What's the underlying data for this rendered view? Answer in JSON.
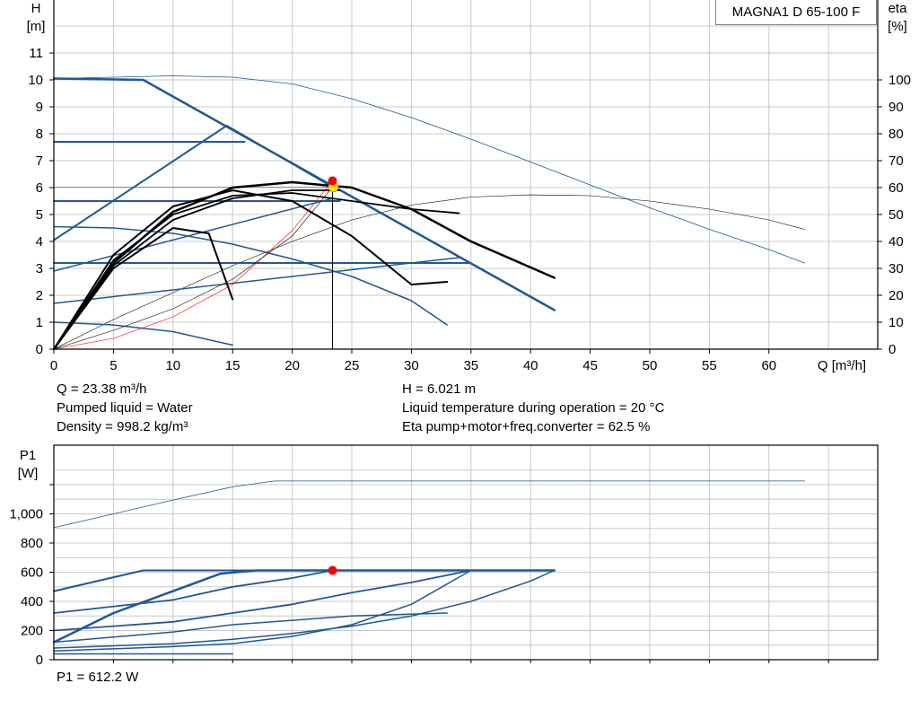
{
  "model": "MAGNA1 D 65-100 F",
  "operating_point": {
    "q_text": "Q = 23.38 m³/h",
    "h_text": "H = 6.021 m",
    "liquid_text": "Pumped liquid = Water",
    "temp_text": "Liquid temperature during operation = 20 °C",
    "density_text": "Density = 998.2 kg/m³",
    "eta_text": "Eta pump+motor+freq.converter = 62.5 %",
    "p1_text": "P1 = 612.2 W"
  },
  "colors": {
    "curve_blue": "#1f5896",
    "black": "#000000",
    "duty_red": "#ff0000",
    "duty_yellow": "#ffe000",
    "grid": "#c8c8c8"
  },
  "chart_data": [
    {
      "type": "line",
      "title": "",
      "xlabel": "Q [m³/h]",
      "ylabel_left": "H\n[m]",
      "ylabel_right": "eta\n[%]",
      "xlim": [
        0,
        69
      ],
      "ylim_left": [
        0,
        13
      ],
      "ylim_right": [
        0,
        130
      ],
      "x_ticks": [
        0,
        5,
        10,
        15,
        20,
        25,
        30,
        35,
        40,
        45,
        50,
        55,
        60
      ],
      "y_ticks_left": [
        0,
        1,
        2,
        3,
        4,
        5,
        6,
        7,
        8,
        9,
        10,
        11
      ],
      "y_ticks_right": [
        0,
        10,
        20,
        30,
        40,
        50,
        60,
        70,
        80,
        90,
        100
      ],
      "grid": true,
      "series": [
        {
          "role": "max_curve",
          "color": "#1f5896",
          "width": 0.8,
          "points": [
            [
              0,
              10.05
            ],
            [
              5,
              10.1
            ],
            [
              10,
              10.15
            ],
            [
              15,
              10.1
            ],
            [
              20,
              9.85
            ],
            [
              25,
              9.3
            ],
            [
              30,
              8.6
            ],
            [
              35,
              7.8
            ],
            [
              40,
              6.95
            ],
            [
              45,
              6.1
            ],
            [
              50,
              5.25
            ],
            [
              55,
              4.45
            ],
            [
              60,
              3.7
            ],
            [
              63,
              3.2
            ]
          ]
        },
        {
          "role": "eta_max",
          "color": "#000000",
          "width": 0.6,
          "axis": "right",
          "points": [
            [
              0,
              0
            ],
            [
              5,
              11
            ],
            [
              10,
              21
            ],
            [
              15,
              31
            ],
            [
              20,
              40
            ],
            [
              25,
              48
            ],
            [
              30,
              53.5
            ],
            [
              35,
              56.5
            ],
            [
              40,
              57.3
            ],
            [
              45,
              57
            ],
            [
              50,
              55
            ],
            [
              55,
              52
            ],
            [
              60,
              48
            ],
            [
              63,
              44.5
            ]
          ]
        },
        {
          "role": "prop_pressure",
          "color": "#1f5896",
          "width": 2.5,
          "points": [
            [
              0,
              10.05
            ],
            [
              7.5,
              10
            ],
            [
              42,
              1.45
            ]
          ]
        },
        {
          "role": "const_pressure",
          "color": "#1f5896",
          "width": 2,
          "points": [
            [
              0,
              7.7
            ],
            [
              16,
              7.7
            ]
          ]
        },
        {
          "role": "const_pressure",
          "color": "#1f5896",
          "width": 2,
          "points": [
            [
              0,
              5.5
            ],
            [
              24,
              5.5
            ]
          ]
        },
        {
          "role": "const_pressure",
          "color": "#1f5896",
          "width": 2,
          "points": [
            [
              0,
              3.2
            ],
            [
              35,
              3.2
            ]
          ]
        },
        {
          "role": "prop_line",
          "color": "#1f5896",
          "width": 2,
          "points": [
            [
              0,
              4.05
            ],
            [
              14.5,
              8.3
            ],
            [
              23.38,
              6.021
            ]
          ]
        },
        {
          "role": "prop_line",
          "color": "#1f5896",
          "width": 1.5,
          "points": [
            [
              0,
              2.9
            ],
            [
              23.38,
              5.6
            ]
          ]
        },
        {
          "role": "prop_line",
          "color": "#1f5896",
          "width": 1.5,
          "points": [
            [
              0,
              1.7
            ],
            [
              34,
              3.4
            ]
          ]
        },
        {
          "role": "const_curve",
          "color": "#1f5896",
          "width": 1.5,
          "points": [
            [
              0,
              4.55
            ],
            [
              5,
              4.5
            ],
            [
              10,
              4.3
            ],
            [
              15,
              3.9
            ],
            [
              20,
              3.35
            ],
            [
              25,
              2.7
            ],
            [
              30,
              1.8
            ],
            [
              33,
              0.9
            ]
          ]
        },
        {
          "role": "const_curve",
          "color": "#1f5896",
          "width": 1.5,
          "points": [
            [
              0,
              1
            ],
            [
              5,
              0.9
            ],
            [
              10,
              0.65
            ],
            [
              15,
              0.15
            ]
          ]
        },
        {
          "role": "pump_curve",
          "color": "#000000",
          "width": 2.5,
          "points": [
            [
              0,
              0
            ],
            [
              5,
              3.2
            ],
            [
              10,
              5.1
            ],
            [
              15,
              6.0
            ],
            [
              20,
              6.2
            ],
            [
              25,
              6.0
            ],
            [
              30,
              5.2
            ],
            [
              35,
              4.0
            ],
            [
              42,
              2.65
            ]
          ]
        },
        {
          "role": "pump_curve",
          "color": "#000000",
          "width": 2,
          "points": [
            [
              0,
              0
            ],
            [
              5,
              3.5
            ],
            [
              10,
              5.3
            ],
            [
              15,
              5.9
            ],
            [
              20,
              5.5
            ],
            [
              25,
              4.2
            ],
            [
              30,
              2.4
            ],
            [
              33,
              2.5
            ]
          ]
        },
        {
          "role": "pump_curve",
          "color": "#000000",
          "width": 2,
          "points": [
            [
              0,
              0
            ],
            [
              5,
              3.0
            ],
            [
              10,
              4.5
            ],
            [
              13,
              4.3
            ],
            [
              15,
              1.85
            ]
          ]
        },
        {
          "role": "pump_curve",
          "color": "#000000",
          "width": 1.8,
          "points": [
            [
              0,
              0
            ],
            [
              5,
              3.3
            ],
            [
              10,
              5.0
            ],
            [
              15,
              5.7
            ],
            [
              20,
              5.8
            ],
            [
              25,
              5.5
            ],
            [
              30,
              5.2
            ],
            [
              34,
              5.05
            ]
          ]
        },
        {
          "role": "pump_curve",
          "color": "#000000",
          "width": 1.8,
          "points": [
            [
              0,
              0
            ],
            [
              5,
              3.1
            ],
            [
              10,
              4.8
            ],
            [
              15,
              5.6
            ],
            [
              20,
              5.9
            ],
            [
              24,
              5.9
            ]
          ]
        },
        {
          "role": "eta_curve",
          "color": "#ff0000",
          "width": 0.6,
          "axis": "right",
          "points": [
            [
              0,
              0
            ],
            [
              5,
              4
            ],
            [
              10,
              12
            ],
            [
              15,
              24
            ],
            [
              20,
              44
            ],
            [
              23.38,
              62.5
            ]
          ]
        },
        {
          "role": "system_curve",
          "color": "#000000",
          "width": 0.6,
          "points": [
            [
              0,
              0
            ],
            [
              5,
              0.7
            ],
            [
              10,
              1.5
            ],
            [
              15,
              2.6
            ],
            [
              20,
              4.2
            ],
            [
              23.38,
              6.021
            ]
          ]
        }
      ],
      "duty_point": {
        "q": 23.38,
        "h": 6.021,
        "eta": 62.5
      }
    },
    {
      "type": "line",
      "title": "",
      "xlabel": "",
      "ylabel_left": "P1\n[W]",
      "xlim": [
        0,
        69
      ],
      "ylim": [
        0,
        1400
      ],
      "y_ticks": [
        0,
        200,
        400,
        600,
        800,
        1000
      ],
      "y_tick_labels": [
        "0",
        "200",
        "400",
        "600",
        "800",
        "1,000"
      ],
      "grid": true,
      "series": [
        {
          "role": "max_power",
          "color": "#1f5896",
          "width": 0.8,
          "points": [
            [
              0,
              905
            ],
            [
              5,
              1000
            ],
            [
              10,
              1095
            ],
            [
              15,
              1185
            ],
            [
              18.5,
              1225
            ],
            [
              30,
              1225
            ],
            [
              60,
              1225
            ],
            [
              63,
              1225
            ]
          ]
        },
        {
          "role": "power",
          "color": "#1f5896",
          "width": 2.5,
          "points": [
            [
              0,
              120
            ],
            [
              5,
              320
            ],
            [
              10,
              470
            ],
            [
              14,
              590
            ],
            [
              17,
              612
            ],
            [
              42,
              612
            ]
          ]
        },
        {
          "role": "power",
          "color": "#1f5896",
          "width": 2,
          "points": [
            [
              0,
              470
            ],
            [
              7.5,
              612
            ],
            [
              42,
              612
            ]
          ]
        },
        {
          "role": "power",
          "color": "#1f5896",
          "width": 1.8,
          "points": [
            [
              0,
              320
            ],
            [
              10,
              410
            ],
            [
              15,
              500
            ],
            [
              20,
              560
            ],
            [
              23.38,
              612
            ]
          ]
        },
        {
          "role": "power",
          "color": "#1f5896",
          "width": 1.8,
          "points": [
            [
              0,
              200
            ],
            [
              10,
              260
            ],
            [
              15,
              320
            ],
            [
              20,
              380
            ],
            [
              25,
              460
            ],
            [
              30,
              530
            ],
            [
              35,
              612
            ]
          ]
        },
        {
          "role": "power",
          "color": "#1f5896",
          "width": 1.5,
          "points": [
            [
              0,
              120
            ],
            [
              10,
              190
            ],
            [
              15,
              240
            ],
            [
              20,
              270
            ],
            [
              25,
              300
            ],
            [
              33,
              320
            ]
          ]
        },
        {
          "role": "power",
          "color": "#1f5896",
          "width": 1.5,
          "points": [
            [
              0,
              80
            ],
            [
              10,
              110
            ],
            [
              15,
              140
            ],
            [
              20,
              180
            ],
            [
              25,
              230
            ],
            [
              30,
              300
            ],
            [
              35,
              400
            ],
            [
              40,
              540
            ],
            [
              42,
              612
            ]
          ]
        },
        {
          "role": "power",
          "color": "#1f5896",
          "width": 1.5,
          "points": [
            [
              0,
              60
            ],
            [
              10,
              90
            ],
            [
              15,
              110
            ],
            [
              20,
              160
            ],
            [
              25,
              240
            ],
            [
              30,
              380
            ],
            [
              35,
              612
            ]
          ]
        },
        {
          "role": "power",
          "color": "#1f5896",
          "width": 1.5,
          "points": [
            [
              0,
              40
            ],
            [
              5,
              40
            ],
            [
              10,
              40
            ],
            [
              15,
              40
            ]
          ]
        }
      ],
      "duty_point": {
        "q": 23.38,
        "p1": 612.2
      }
    }
  ]
}
